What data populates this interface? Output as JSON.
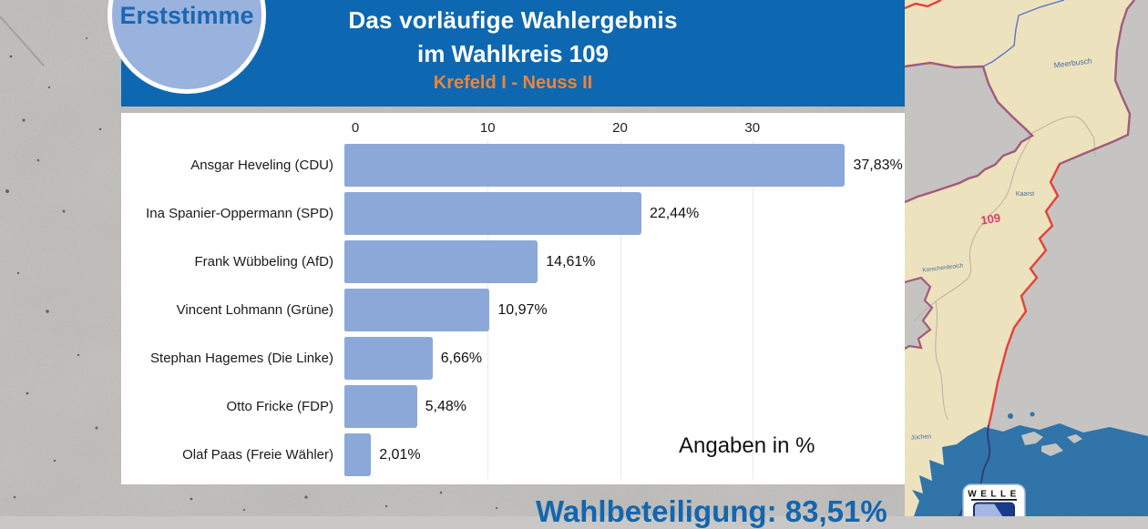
{
  "header": {
    "badge": "Erststimme",
    "title_line1": "Das vorläufige Wahlergebnis",
    "title_line2": "im Wahlkreis 109",
    "subtitle": "Krefeld I - Neuss II"
  },
  "chart_data": {
    "type": "bar",
    "orientation": "horizontal",
    "title": "Das vorläufige Wahlergebnis im Wahlkreis 109 (Erststimme)",
    "categories": [
      "Ansgar Heveling (CDU)",
      "Ina Spanier-Oppermann (SPD)",
      "Frank Wübbeling (AfD)",
      "Vincent Lohmann (Grüne)",
      "Stephan Hagemes (Die Linke)",
      "Otto Fricke (FDP)",
      "Olaf Paas (Freie Wähler)"
    ],
    "values": [
      37.83,
      22.44,
      14.61,
      10.97,
      6.66,
      5.48,
      2.01
    ],
    "value_labels": [
      "37,83%",
      "22,44%",
      "14,61%",
      "10,97%",
      "6,66%",
      "5,48%",
      "2,01%"
    ],
    "x_ticks": [
      0,
      10,
      20,
      30
    ],
    "xlim": [
      0,
      40
    ],
    "grid": "vertical, light gray",
    "note": "Angaben in %",
    "ylabel": "",
    "xlabel": ""
  },
  "footer": {
    "turnout": "Wahlbeteiligung: 83,51%"
  },
  "map": {
    "district_number": "109",
    "labels": {
      "meerbusch": "Meerbusch",
      "kaarst": "Kaarst",
      "korschenbroich": "Korschenbroich",
      "juechen": "Jüchen"
    },
    "logo": "WELLE"
  },
  "colors": {
    "header_blue": "#0d68b1",
    "accent_orange": "#ef8437",
    "bar_blue": "#8ba8d9",
    "badge_fill": "#99b2de",
    "badge_text": "#1b67b2",
    "turnout_blue": "#1366ae",
    "map_beige": "#f0e5c0",
    "map_gray": "#c7c6c4",
    "district_boundary_red": "#e8403a",
    "boundary_blue": "#5577cc",
    "highlight_region_blue": "#2e74ab"
  }
}
